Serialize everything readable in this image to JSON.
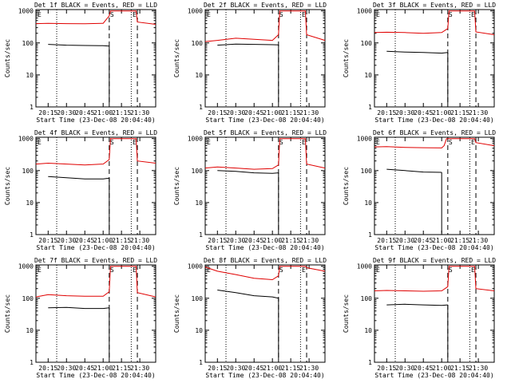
{
  "colors": {
    "events": "#000000",
    "lld": "#e00000",
    "axis": "#000000",
    "background": "#ffffff"
  },
  "figure": {
    "ylabel": "Counts/sec",
    "xlabel": "Start Time (23-Dec-08 20:04:40)",
    "x_ticks": [
      "20:15",
      "20:30",
      "20:45",
      "21:00",
      "21:15",
      "21:30"
    ],
    "y_ticks": [
      "1",
      "10",
      "100",
      "1000"
    ],
    "markers": [
      "E",
      "S",
      "E"
    ]
  },
  "chart_data": [
    {
      "type": "line",
      "title": "Det 1f BLACK = Events, RED = LLD",
      "xlabel": "Start Time (23-Dec-08 20:04:40)",
      "ylabel": "Counts/sec",
      "ylog": true,
      "ylim": [
        1,
        1100
      ],
      "xlim": [
        "20:05",
        "21:43"
      ],
      "series": [
        {
          "name": "Events",
          "color": "#000000",
          "x": [
            "20:15",
            "20:30",
            "20:45",
            "21:00",
            "21:05"
          ],
          "y": [
            90,
            85,
            83,
            82,
            80
          ]
        },
        {
          "name": "LLD",
          "color": "#e00000",
          "x": [
            "20:05",
            "20:15",
            "20:30",
            "20:45",
            "21:00",
            "21:05",
            "21:06",
            "21:27",
            "21:28",
            "21:43"
          ],
          "y": [
            400,
            410,
            400,
            395,
            410,
            700,
            1000,
            1000,
            450,
            380
          ]
        }
      ]
    },
    {
      "type": "line",
      "title": "Det 2f BLACK = Events, RED = LLD",
      "xlabel": "Start Time (23-Dec-08 20:04:40)",
      "ylabel": "Counts/sec",
      "ylog": true,
      "ylim": [
        1,
        1100
      ],
      "xlim": [
        "20:05",
        "21:43"
      ],
      "series": [
        {
          "name": "Events",
          "color": "#000000",
          "x": [
            "20:15",
            "20:30",
            "20:45",
            "21:00",
            "21:05"
          ],
          "y": [
            85,
            92,
            90,
            88,
            87
          ]
        },
        {
          "name": "LLD",
          "color": "#e00000",
          "x": [
            "20:05",
            "20:15",
            "20:30",
            "20:45",
            "21:00",
            "21:05",
            "21:06",
            "21:27",
            "21:28",
            "21:43"
          ],
          "y": [
            110,
            120,
            140,
            130,
            120,
            180,
            1000,
            1000,
            180,
            120
          ]
        }
      ]
    },
    {
      "type": "line",
      "title": "Det 3f BLACK = Events, RED = LLD",
      "xlabel": "Start Time (23-Dec-08 20:04:40)",
      "ylabel": "Counts/sec",
      "ylog": true,
      "ylim": [
        1,
        1100
      ],
      "xlim": [
        "20:05",
        "21:43"
      ],
      "series": [
        {
          "name": "Events",
          "color": "#000000",
          "x": [
            "20:15",
            "20:30",
            "20:45",
            "21:00",
            "21:05"
          ],
          "y": [
            55,
            52,
            50,
            48,
            50
          ]
        },
        {
          "name": "LLD",
          "color": "#e00000",
          "x": [
            "20:05",
            "20:15",
            "20:30",
            "20:45",
            "21:00",
            "21:05",
            "21:06",
            "21:27",
            "21:28",
            "21:43"
          ],
          "y": [
            210,
            215,
            210,
            200,
            210,
            280,
            1000,
            1000,
            220,
            180
          ]
        }
      ]
    },
    {
      "type": "line",
      "title": "Det 4f BLACK = Events, RED = LLD",
      "xlabel": "Start Time (23-Dec-08 20:04:40)",
      "ylabel": "Counts/sec",
      "ylog": true,
      "ylim": [
        1,
        1100
      ],
      "xlim": [
        "20:05",
        "21:43"
      ],
      "series": [
        {
          "name": "Events",
          "color": "#000000",
          "x": [
            "20:15",
            "20:30",
            "20:45",
            "21:00",
            "21:05"
          ],
          "y": [
            65,
            60,
            55,
            55,
            58
          ]
        },
        {
          "name": "LLD",
          "color": "#e00000",
          "x": [
            "20:05",
            "20:15",
            "20:30",
            "20:45",
            "21:00",
            "21:05",
            "21:06",
            "21:27",
            "21:28",
            "21:43"
          ],
          "y": [
            160,
            170,
            160,
            150,
            160,
            220,
            1000,
            1000,
            200,
            170
          ]
        }
      ]
    },
    {
      "type": "line",
      "title": "Det 5f BLACK = Events, RED = LLD",
      "xlabel": "Start Time (23-Dec-08 20:04:40)",
      "ylabel": "Counts/sec",
      "ylog": true,
      "ylim": [
        1,
        1100
      ],
      "xlim": [
        "20:05",
        "21:43"
      ],
      "series": [
        {
          "name": "Events",
          "color": "#000000",
          "x": [
            "20:15",
            "20:30",
            "20:45",
            "21:00",
            "21:05"
          ],
          "y": [
            100,
            95,
            85,
            82,
            85
          ]
        },
        {
          "name": "LLD",
          "color": "#e00000",
          "x": [
            "20:05",
            "20:15",
            "20:30",
            "20:45",
            "21:00",
            "21:05",
            "21:06",
            "21:27",
            "21:28",
            "21:43"
          ],
          "y": [
            120,
            130,
            120,
            110,
            115,
            150,
            1000,
            1000,
            160,
            120
          ]
        }
      ]
    },
    {
      "type": "line",
      "title": "Det 6f BLACK = Events, RED = LLD",
      "xlabel": "Start Time (23-Dec-08 20:04:40)",
      "ylabel": "Counts/sec",
      "ylog": true,
      "ylim": [
        1,
        1100
      ],
      "xlim": [
        "20:05",
        "21:43"
      ],
      "series": [
        {
          "name": "Events",
          "color": "#000000",
          "x": [
            "20:15",
            "20:30",
            "20:45",
            "21:00"
          ],
          "y": [
            110,
            100,
            90,
            88
          ]
        },
        {
          "name": "LLD",
          "color": "#e00000",
          "x": [
            "20:05",
            "20:15",
            "20:30",
            "20:45",
            "21:00",
            "21:02",
            "21:04",
            "21:27",
            "21:28",
            "21:43"
          ],
          "y": [
            550,
            560,
            530,
            520,
            510,
            600,
            1000,
            1000,
            750,
            600
          ]
        }
      ]
    },
    {
      "type": "line",
      "title": "Det 7f BLACK = Events, RED = LLD",
      "xlabel": "Start Time (23-Dec-08 20:04:40)",
      "ylabel": "Counts/sec",
      "ylog": true,
      "ylim": [
        1,
        1100
      ],
      "xlim": [
        "20:05",
        "21:43"
      ],
      "series": [
        {
          "name": "Events",
          "color": "#000000",
          "x": [
            "20:15",
            "20:30",
            "20:45",
            "21:00",
            "21:05"
          ],
          "y": [
            50,
            52,
            48,
            48,
            50
          ]
        },
        {
          "name": "LLD",
          "color": "#e00000",
          "x": [
            "20:05",
            "20:15",
            "20:30",
            "20:45",
            "21:00",
            "21:05",
            "21:06",
            "21:27",
            "21:28",
            "21:43"
          ],
          "y": [
            110,
            130,
            120,
            115,
            115,
            160,
            1000,
            1000,
            150,
            110
          ]
        }
      ]
    },
    {
      "type": "line",
      "title": "Det 8f BLACK = Events, RED = LLD",
      "xlabel": "Start Time (23-Dec-08 20:04:40)",
      "ylabel": "Counts/sec",
      "ylog": true,
      "ylim": [
        1,
        1100
      ],
      "xlim": [
        "20:05",
        "21:43"
      ],
      "series": [
        {
          "name": "Events",
          "color": "#000000",
          "x": [
            "20:15",
            "20:30",
            "20:45",
            "21:00",
            "21:05"
          ],
          "y": [
            180,
            150,
            120,
            110,
            100
          ]
        },
        {
          "name": "LLD",
          "color": "#e00000",
          "x": [
            "20:05",
            "20:15",
            "20:30",
            "20:45",
            "21:00",
            "21:05",
            "21:06",
            "21:27",
            "21:28",
            "21:43"
          ],
          "y": [
            950,
            700,
            550,
            420,
            380,
            500,
            1000,
            1000,
            900,
            700
          ]
        }
      ]
    },
    {
      "type": "line",
      "title": "Det 9f BLACK = Events, RED = LLD",
      "xlabel": "Start Time (23-Dec-08 20:04:40)",
      "ylabel": "Counts/sec",
      "ylog": true,
      "ylim": [
        1,
        1100
      ],
      "xlim": [
        "20:05",
        "21:43"
      ],
      "series": [
        {
          "name": "Events",
          "color": "#000000",
          "x": [
            "20:15",
            "20:30",
            "20:45",
            "21:00",
            "21:05"
          ],
          "y": [
            62,
            65,
            62,
            60,
            62
          ]
        },
        {
          "name": "LLD",
          "color": "#e00000",
          "x": [
            "20:05",
            "20:15",
            "20:30",
            "20:45",
            "21:00",
            "21:05",
            "21:06",
            "21:27",
            "21:28",
            "21:43"
          ],
          "y": [
            170,
            175,
            170,
            165,
            170,
            230,
            1000,
            1000,
            200,
            170
          ]
        }
      ]
    }
  ]
}
